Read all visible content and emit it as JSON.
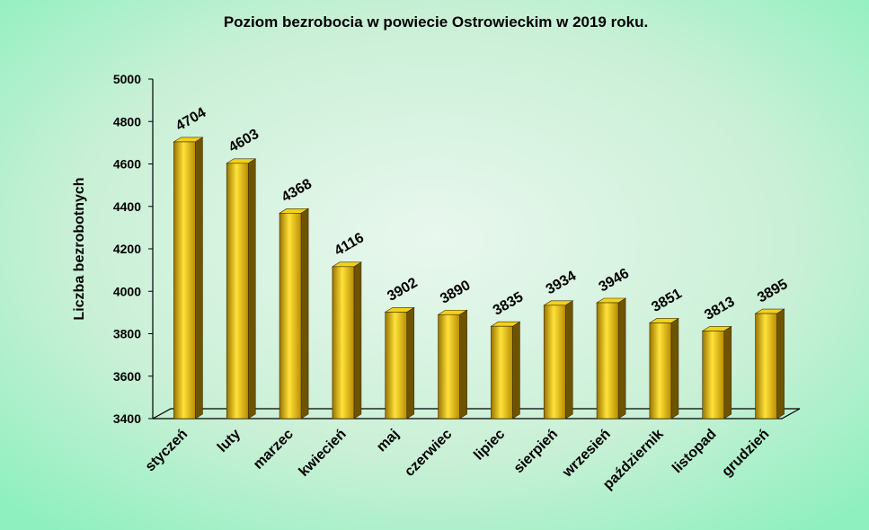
{
  "chart_data": {
    "type": "bar3d",
    "title": "Poziom bezrobocia w powiecie Ostrowieckim  w 2019 roku.",
    "y_label": "Liczba bezrobotnych",
    "categories": [
      "styczeń",
      "luty",
      "marzec",
      "kwiecień",
      "maj",
      "czerwiec",
      "lipiec",
      "sierpień",
      "wrzesień",
      "październik",
      "listopad",
      "grudzień"
    ],
    "values": [
      4704,
      4603,
      4368,
      4116,
      3902,
      3890,
      3835,
      3934,
      3946,
      3851,
      3813,
      3895
    ],
    "color": "#e8c000",
    "ylim": [
      3400,
      5000
    ],
    "yticks": [
      3400,
      3600,
      3800,
      4000,
      4200,
      4400,
      4600,
      4800,
      5000
    ]
  }
}
